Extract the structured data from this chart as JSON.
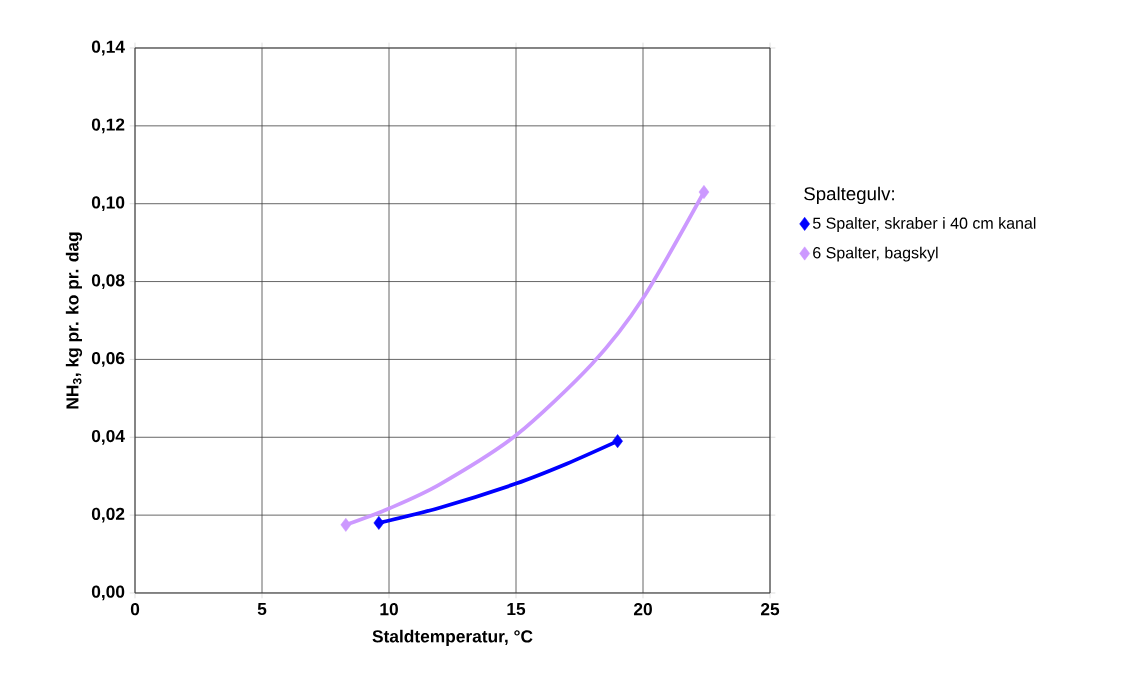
{
  "chart_data": {
    "type": "scatter",
    "xlabel": "Staldtemperatur, °C",
    "ylabel": "NH$_{3}$, kg pr. ko pr. dag",
    "legend_title": "Spaltegulv:",
    "xlim": [
      0,
      25
    ],
    "xticks": [
      0,
      5,
      10,
      15,
      20,
      25
    ],
    "ylim": [
      0,
      0.14
    ],
    "yticks": [
      {
        "value": 0,
        "label": "0,00"
      },
      {
        "value": 0.02,
        "label": "0,02"
      },
      {
        "value": 0.04,
        "label": "0,04"
      },
      {
        "value": 0.06,
        "label": "0,06"
      },
      {
        "value": 0.08,
        "label": "0,08"
      },
      {
        "value": 0.1,
        "label": "0,10"
      },
      {
        "value": 0.12,
        "label": "0,12"
      },
      {
        "value": 0.14,
        "label": "0,14"
      }
    ],
    "grid": true,
    "legend": "right",
    "marker": "diamond",
    "series": [
      {
        "type": "line",
        "marker": "none",
        "color": "#0000ff",
        "x": [
          9.6,
          12,
          15,
          17,
          19.0
        ],
        "values": [
          0.018,
          0.0219,
          0.0281,
          0.0332,
          0.039
        ]
      },
      {
        "type": "line",
        "marker": "none",
        "color": "#cc99ff",
        "x": [
          8.3,
          10,
          12,
          15,
          18,
          20,
          22.4
        ],
        "values": [
          0.0175,
          0.0217,
          0.0279,
          0.0405,
          0.0589,
          0.0757,
          0.103
        ]
      },
      {
        "name": "5 Spalter, skraber i 40 cm kanal",
        "color": "#0000ff",
        "x": [
          9.6,
          19.0
        ],
        "values": [
          0.018,
          0.039
        ]
      },
      {
        "name": "6 Spalter, bagskyl",
        "color": "#cc99ff",
        "x": [
          8.3,
          22.4
        ],
        "values": [
          0.0175,
          0.103
        ]
      }
    ]
  }
}
